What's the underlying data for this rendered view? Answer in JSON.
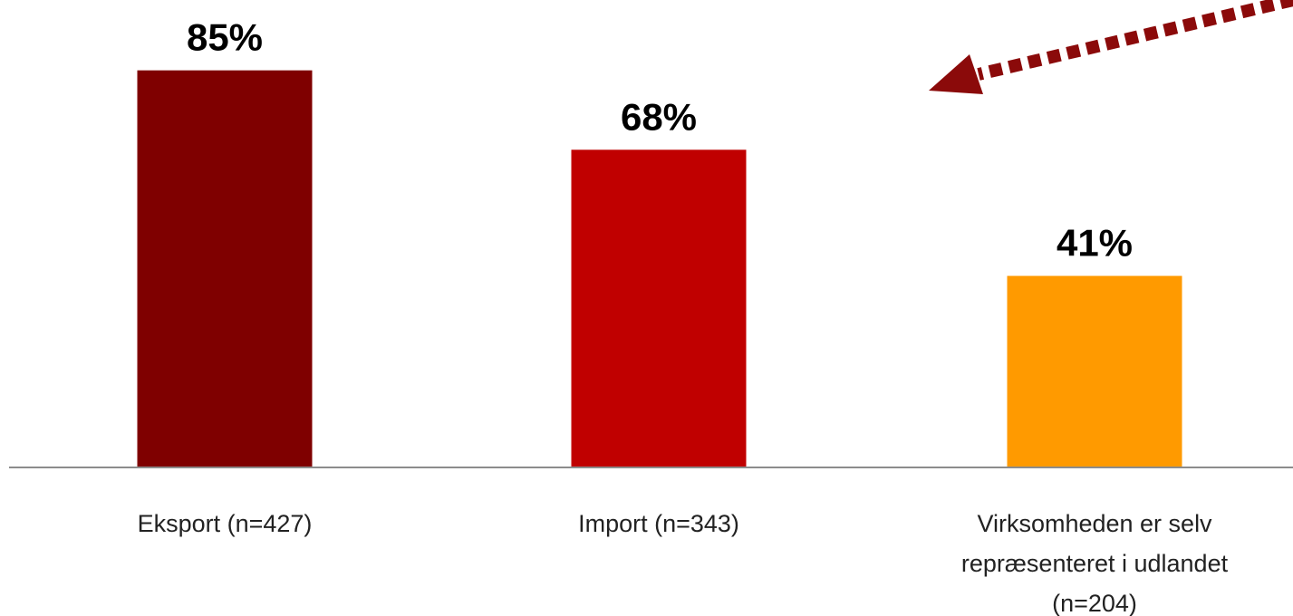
{
  "chart_data": {
    "type": "bar",
    "categories": [
      [
        "Eksport (n=427)"
      ],
      [
        "Import (n=343)"
      ],
      [
        "Virksomheden er selv",
        "repræsenteret i udlandet",
        "(n=204)"
      ]
    ],
    "values": [
      85,
      68,
      41
    ],
    "data_labels": [
      "85%",
      "68%",
      "41%"
    ],
    "colors": [
      "#7f0000",
      "#c00000",
      "#ff9a00"
    ],
    "ylim": [
      0,
      100
    ],
    "grid": false,
    "legend": "none",
    "annotation_arrow_color": "#8b0a0a"
  }
}
